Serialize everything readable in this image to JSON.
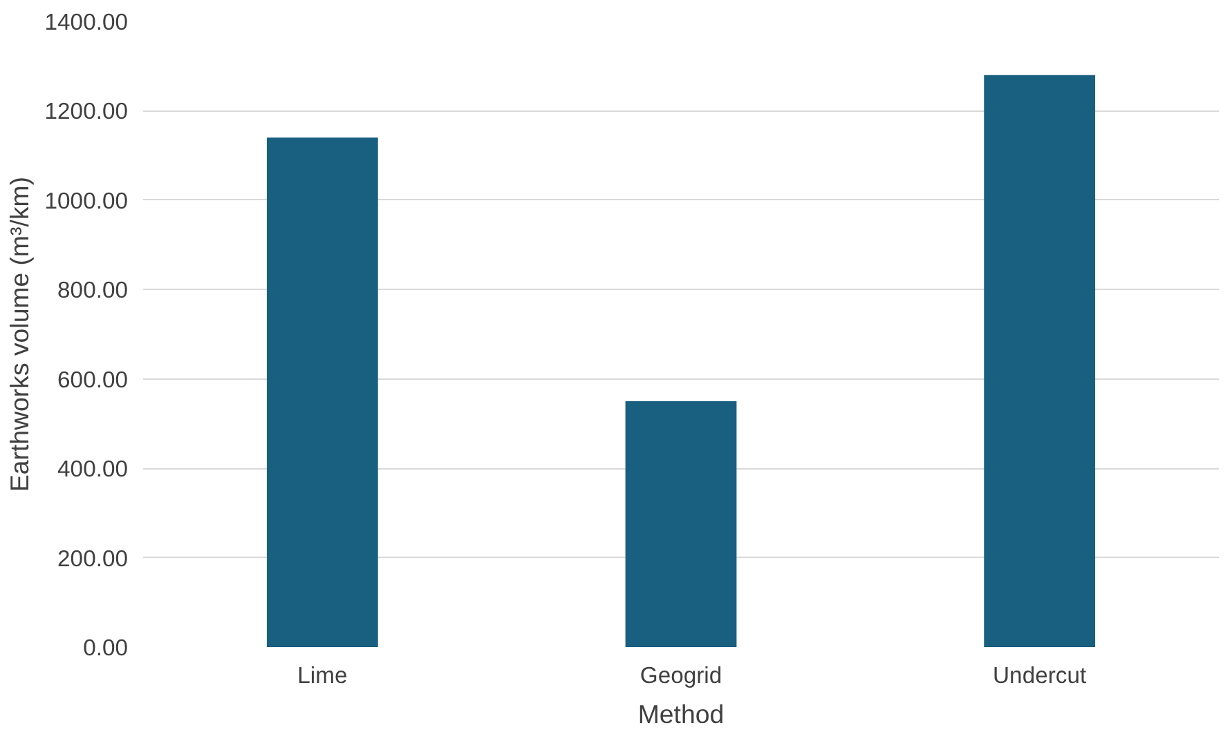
{
  "chart_data": {
    "type": "bar",
    "xlabel": "Method",
    "ylabel": "Earthworks volume (m³/km)",
    "categories": [
      "Lime",
      "Geogrid",
      "Undercut"
    ],
    "values": [
      1140,
      550,
      1280
    ],
    "color": "#185f80",
    "ylim": [
      0,
      1400
    ],
    "yticks": [
      {
        "value": 0,
        "label": "0.00"
      },
      {
        "value": 200,
        "label": "200.00"
      },
      {
        "value": 400,
        "label": "400.00"
      },
      {
        "value": 600,
        "label": "600.00"
      },
      {
        "value": 800,
        "label": "800.00"
      },
      {
        "value": 1000,
        "label": "1000.00"
      },
      {
        "value": 1200,
        "label": "1200.00"
      },
      {
        "value": 1400,
        "label": "1400.00"
      }
    ],
    "grid": "y"
  }
}
